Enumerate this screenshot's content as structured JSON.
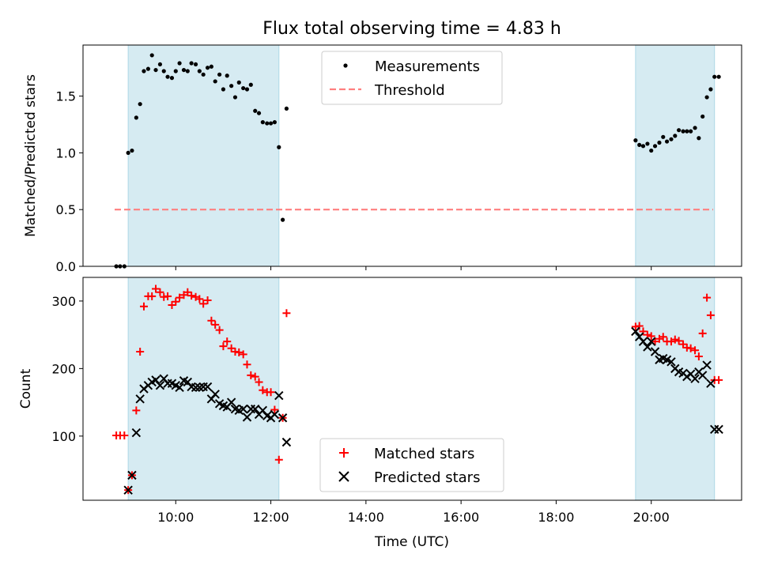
{
  "figure": {
    "title": "Flux total observing time = 4.83 h",
    "xlabel": "Time (UTC)",
    "x_range_hours": [
      8.05,
      21.9
    ],
    "x_ticks": [
      {
        "hour": 10,
        "label": "10:00"
      },
      {
        "hour": 12,
        "label": "12:00"
      },
      {
        "hour": 14,
        "label": "14:00"
      },
      {
        "hour": 16,
        "label": "16:00"
      },
      {
        "hour": 18,
        "label": "18:00"
      },
      {
        "hour": 20,
        "label": "20:00"
      }
    ],
    "shaded_intervals_hours": [
      [
        9.0,
        12.17
      ],
      [
        19.67,
        21.33
      ]
    ],
    "shade_color": "#add8e6"
  },
  "chart_data": [
    {
      "type": "scatter",
      "panel": "top",
      "ylabel": "Matched/Predicted stars",
      "ylim": [
        0,
        1.95
      ],
      "y_ticks": [
        0.0,
        0.5,
        1.0,
        1.5
      ],
      "y_tick_labels": [
        "0.0",
        "0.5",
        "1.0",
        "1.5"
      ],
      "legend": {
        "placement": "upper center",
        "entries": [
          "Measurements",
          "Threshold"
        ]
      },
      "threshold": {
        "name": "Threshold",
        "value": 0.5,
        "x_range": [
          8.05,
          21.9
        ],
        "color": "#ff7f7f",
        "style": "dashed"
      },
      "series": [
        {
          "name": "Measurements",
          "color": "#000000",
          "x": [
            8.75,
            8.83,
            8.92,
            9.0,
            9.08,
            9.17,
            9.25,
            9.33,
            9.42,
            9.5,
            9.58,
            9.67,
            9.75,
            9.83,
            9.92,
            10.0,
            10.08,
            10.17,
            10.25,
            10.33,
            10.42,
            10.5,
            10.58,
            10.67,
            10.75,
            10.83,
            10.92,
            11.0,
            11.08,
            11.17,
            11.25,
            11.33,
            11.42,
            11.5,
            11.58,
            11.67,
            11.75,
            11.83,
            11.92,
            12.0,
            12.08,
            12.17,
            12.25,
            12.33,
            19.67,
            19.75,
            19.83,
            19.92,
            20.0,
            20.08,
            20.17,
            20.25,
            20.33,
            20.42,
            20.5,
            20.58,
            20.67,
            20.75,
            20.83,
            20.92,
            21.0,
            21.08,
            21.17,
            21.25,
            21.33,
            21.42
          ],
          "y": [
            0.0,
            0.0,
            0.0,
            1.0,
            1.02,
            1.31,
            1.43,
            1.72,
            1.74,
            1.86,
            1.73,
            1.78,
            1.72,
            1.67,
            1.66,
            1.72,
            1.79,
            1.73,
            1.72,
            1.79,
            1.78,
            1.72,
            1.69,
            1.75,
            1.76,
            1.63,
            1.69,
            1.56,
            1.68,
            1.59,
            1.49,
            1.62,
            1.57,
            1.56,
            1.6,
            1.37,
            1.35,
            1.27,
            1.26,
            1.26,
            1.27,
            1.05,
            0.41,
            1.39,
            1.11,
            1.07,
            1.06,
            1.08,
            1.02,
            1.06,
            1.09,
            1.14,
            1.1,
            1.12,
            1.15,
            1.2,
            1.19,
            1.19,
            1.19,
            1.22,
            1.13,
            1.32,
            1.49,
            1.56,
            1.67,
            1.67
          ]
        }
      ]
    },
    {
      "type": "scatter",
      "panel": "bottom",
      "ylabel": "Count",
      "ylim": [
        5,
        335
      ],
      "y_ticks": [
        100,
        200,
        300
      ],
      "y_tick_labels": [
        "100",
        "200",
        "300"
      ],
      "legend": {
        "placement": "lower center",
        "entries": [
          "Matched stars",
          "Predicted stars"
        ]
      },
      "series": [
        {
          "name": "Matched stars",
          "marker": "plus",
          "color": "#ff0000",
          "x": [
            8.75,
            8.83,
            8.92,
            9.0,
            9.08,
            9.17,
            9.25,
            9.33,
            9.42,
            9.5,
            9.58,
            9.67,
            9.75,
            9.83,
            9.92,
            10.0,
            10.08,
            10.17,
            10.25,
            10.33,
            10.42,
            10.5,
            10.58,
            10.67,
            10.75,
            10.83,
            10.92,
            11.0,
            11.08,
            11.17,
            11.25,
            11.33,
            11.42,
            11.5,
            11.58,
            11.67,
            11.75,
            11.83,
            11.92,
            12.0,
            12.08,
            12.17,
            12.25,
            12.33,
            19.67,
            19.75,
            19.83,
            19.92,
            20.0,
            20.08,
            20.17,
            20.25,
            20.33,
            20.42,
            20.5,
            20.58,
            20.67,
            20.75,
            20.83,
            20.92,
            21.0,
            21.08,
            21.17,
            21.25,
            21.33,
            21.42
          ],
          "y": [
            101,
            101,
            101,
            20,
            42,
            138,
            225,
            292,
            307,
            307,
            318,
            313,
            306,
            307,
            294,
            299,
            305,
            309,
            313,
            308,
            306,
            303,
            296,
            301,
            271,
            265,
            257,
            233,
            240,
            230,
            225,
            224,
            221,
            206,
            190,
            188,
            180,
            168,
            165,
            165,
            139,
            65,
            127,
            282,
            262,
            263,
            255,
            250,
            248,
            240,
            244,
            247,
            240,
            240,
            243,
            241,
            236,
            231,
            230,
            227,
            218,
            252,
            305,
            279,
            183,
            183
          ]
        },
        {
          "name": "Predicted stars",
          "marker": "x",
          "color": "#000000",
          "x": [
            9.0,
            9.08,
            9.17,
            9.25,
            9.33,
            9.42,
            9.5,
            9.58,
            9.67,
            9.75,
            9.83,
            9.92,
            10.0,
            10.08,
            10.17,
            10.25,
            10.33,
            10.42,
            10.5,
            10.58,
            10.67,
            10.75,
            10.83,
            10.92,
            11.0,
            11.08,
            11.17,
            11.25,
            11.33,
            11.42,
            11.5,
            11.58,
            11.67,
            11.75,
            11.83,
            11.92,
            12.0,
            12.08,
            12.17,
            12.25,
            12.33,
            19.67,
            19.75,
            19.83,
            19.92,
            20.0,
            20.08,
            20.17,
            20.25,
            20.33,
            20.42,
            20.5,
            20.58,
            20.67,
            20.75,
            20.83,
            20.92,
            21.0,
            21.08,
            21.17,
            21.25,
            21.33,
            21.42
          ],
          "y": [
            20,
            42,
            105,
            155,
            170,
            175,
            180,
            183,
            175,
            185,
            178,
            178,
            175,
            172,
            182,
            180,
            173,
            172,
            172,
            173,
            173,
            155,
            162,
            148,
            145,
            143,
            150,
            140,
            138,
            140,
            128,
            140,
            140,
            132,
            138,
            130,
            127,
            132,
            160,
            127,
            91,
            255,
            247,
            240,
            232,
            240,
            225,
            213,
            215,
            213,
            210,
            200,
            195,
            193,
            188,
            192,
            185,
            195,
            190,
            205,
            178,
            110,
            110
          ]
        }
      ]
    }
  ]
}
